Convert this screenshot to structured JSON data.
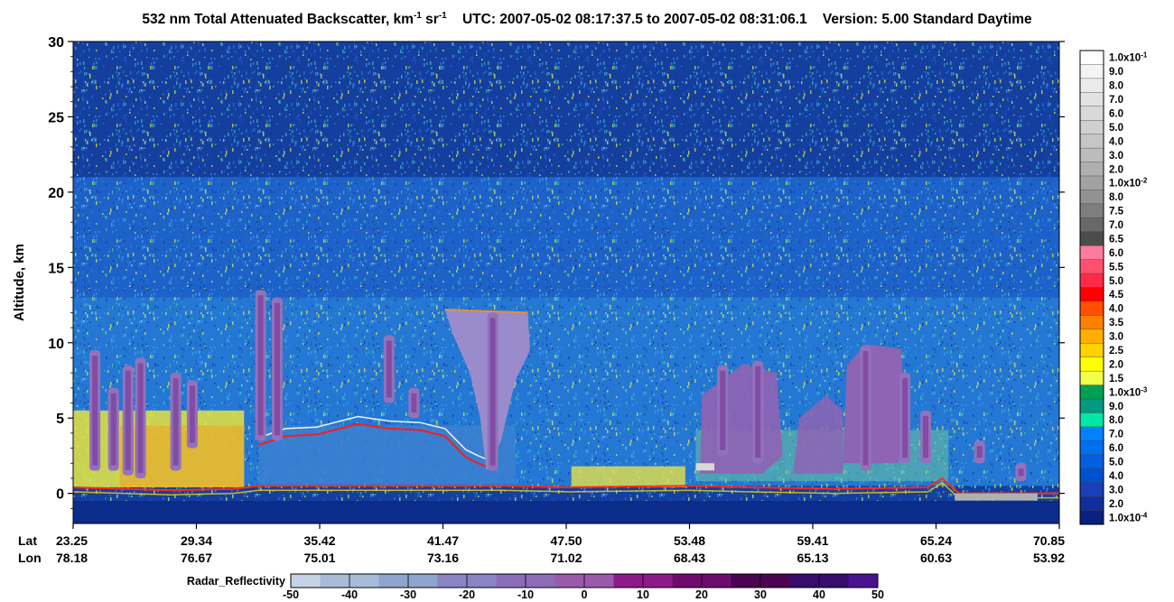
{
  "title": {
    "main": "532 nm Total Attenuated Backscatter, km",
    "sup1": "-1",
    "sr": " sr",
    "sup2": "-1",
    "utc": "UTC:  2007-05-02 08:17:37.5  to  2007-05-02 08:31:06.1",
    "version": "Version: 5.00  Standard  Daytime"
  },
  "chart_data": [
    {
      "type": "heatmap",
      "ylabel": "Altitude, km",
      "ylim": [
        -2,
        30
      ],
      "yticks": [
        0,
        5,
        10,
        15,
        20,
        25,
        30
      ],
      "x_rows": [
        {
          "label": "Lat",
          "values": [
            "23.25",
            "29.34",
            "35.42",
            "41.47",
            "47.50",
            "53.48",
            "59.41",
            "65.24",
            "70.85"
          ]
        },
        {
          "label": "Lon",
          "values": [
            "78.18",
            "76.67",
            "75.01",
            "73.16",
            "71.02",
            "68.43",
            "65.13",
            "60.63",
            "53.92"
          ]
        }
      ],
      "colorbar": {
        "labels": [
          "1.0x10-1",
          "9.0",
          "8.0",
          "7.0",
          "6.0",
          "5.0",
          "4.0",
          "3.0",
          "2.0",
          "1.0x10-2",
          "8.0",
          "7.5",
          "7.0",
          "6.5",
          "6.0",
          "5.5",
          "5.0",
          "4.5",
          "4.0",
          "3.5",
          "3.0",
          "2.5",
          "2.0",
          "1.5",
          "1.0x10-3",
          "9.0",
          "8.0",
          "7.0",
          "6.0",
          "5.0",
          "4.0",
          "3.0",
          "2.0",
          "1.0x10-4"
        ],
        "colors": [
          "#ffffff",
          "#f4f4f4",
          "#ebebeb",
          "#e2e2e2",
          "#d9d9d9",
          "#d0d0d0",
          "#c6c6c6",
          "#bcbcbc",
          "#b0b0b0",
          "#a2a2a2",
          "#929292",
          "#7e7e7e",
          "#686868",
          "#4c4c4c",
          "#ff7a9c",
          "#ff5070",
          "#ff2a48",
          "#ff0000",
          "#ff5000",
          "#ff8000",
          "#ffae00",
          "#ffd200",
          "#ffff00",
          "#f2ff4a",
          "#00a054",
          "#009a80",
          "#00e8a8",
          "#0082ff",
          "#0070f0",
          "#0060e0",
          "#0050d0",
          "#1a3fb8",
          "#102e9c",
          "#0a2080"
        ]
      },
      "radar_reflectivity": {
        "label": "Radar_Reflectivity",
        "ticks": [
          "-50",
          "-40",
          "-30",
          "-20",
          "-10",
          "0",
          "10",
          "20",
          "30",
          "40",
          "50"
        ],
        "colors": [
          "#c4d4e6",
          "#a8bcd8",
          "#8fa4cc",
          "#8a84c4",
          "#8c6cb8",
          "#9a5aac",
          "#8c1a88",
          "#6e0c6e",
          "#4a0450",
          "#380c6c",
          "#4a1290"
        ]
      },
      "clouds": [
        {
          "lat": 24.3,
          "base": 1.5,
          "top": 9.5
        },
        {
          "lat": 25.2,
          "base": 1.5,
          "top": 7.0
        },
        {
          "lat": 25.9,
          "base": 1.2,
          "top": 8.5
        },
        {
          "lat": 26.5,
          "base": 1.0,
          "top": 9.0
        },
        {
          "lat": 28.2,
          "base": 1.5,
          "top": 8.0
        },
        {
          "lat": 29.0,
          "base": 3.0,
          "top": 7.5
        },
        {
          "lat": 32.3,
          "base": 3.5,
          "top": 13.5
        },
        {
          "lat": 33.1,
          "base": 3.5,
          "top": 13.0
        },
        {
          "lat": 38.5,
          "base": 6.0,
          "top": 10.5
        },
        {
          "lat": 39.7,
          "base": 5.0,
          "top": 7.0
        },
        {
          "lat": 43.5,
          "base": 1.5,
          "top": 12.0
        },
        {
          "lat": 54.6,
          "base": 2.5,
          "top": 8.5
        },
        {
          "lat": 56.3,
          "base": 2.0,
          "top": 8.8
        },
        {
          "lat": 61.5,
          "base": 1.5,
          "top": 9.8
        },
        {
          "lat": 63.4,
          "base": 2.0,
          "top": 8.0
        },
        {
          "lat": 64.4,
          "base": 2.0,
          "top": 5.5
        },
        {
          "lat": 67.0,
          "base": 2.0,
          "top": 3.5
        },
        {
          "lat": 69.0,
          "base": 0.8,
          "top": 2.0
        }
      ]
    }
  ]
}
